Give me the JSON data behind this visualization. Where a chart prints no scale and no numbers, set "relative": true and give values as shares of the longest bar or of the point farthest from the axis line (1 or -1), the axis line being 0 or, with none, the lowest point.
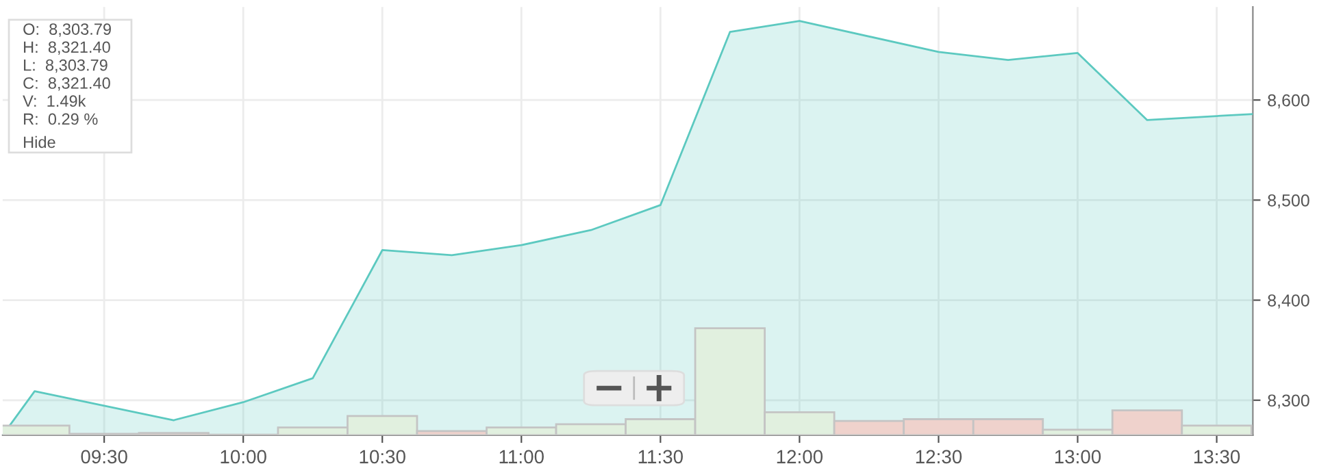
{
  "chart_data": [
    {
      "type": "area",
      "x": [
        9.135,
        9.25,
        9.75,
        10.0,
        10.25,
        10.5,
        10.75,
        11.0,
        11.25,
        11.5,
        11.75,
        12.0,
        12.5,
        12.75,
        13.0,
        13.25,
        13.5,
        13.63
      ],
      "series": [
        {
          "color": "#5cc9c0",
          "values": [
            8265,
            8309,
            8280,
            8298,
            8322,
            8450,
            8445,
            8455,
            8470,
            8495,
            8668,
            8679,
            8648,
            8640,
            8647,
            8580,
            8584,
            8586
          ]
        }
      ],
      "xlim": [
        9.135,
        13.63
      ],
      "xticks": [
        {
          "value": 9.5,
          "label": "09:30"
        },
        {
          "value": 10.0,
          "label": "10:00"
        },
        {
          "value": 10.5,
          "label": "10:30"
        },
        {
          "value": 11.0,
          "label": "11:00"
        },
        {
          "value": 11.5,
          "label": "11:30"
        },
        {
          "value": 12.0,
          "label": "12:00"
        },
        {
          "value": 12.5,
          "label": "12:30"
        },
        {
          "value": 13.0,
          "label": "13:00"
        },
        {
          "value": 13.5,
          "label": "13:30"
        }
      ],
      "ylim": [
        8265,
        8693
      ],
      "yticks": [
        {
          "value": 8300,
          "label": "8,300"
        },
        {
          "value": 8400,
          "label": "8,400"
        },
        {
          "value": 8500,
          "label": "8,500"
        },
        {
          "value": 8600,
          "label": "8,600"
        }
      ],
      "grid": true,
      "annotations": [
        "O:  8,303.79",
        "H:  8,321.40",
        "L:  8,303.79",
        "C:  8,321.40",
        "V:  1.49k",
        "R:  0.29 %",
        "Hide"
      ]
    },
    {
      "type": "bar",
      "relative": true,
      "x": [
        9.25,
        9.5,
        9.75,
        10.0,
        10.25,
        10.5,
        10.75,
        11.0,
        11.25,
        11.5,
        11.75,
        12.0,
        12.25,
        12.5,
        12.75,
        13.0,
        13.25,
        13.5
      ],
      "values": [
        0.09,
        0.013,
        0.022,
        0.006,
        0.073,
        0.18,
        0.039,
        0.073,
        0.103,
        0.15,
        1,
        0.215,
        0.133,
        0.15,
        0.15,
        0.051,
        0.232,
        0.09
      ],
      "colors": [
        "#e1f0df",
        "#efd2cc",
        "#efd2cc",
        "#e1f0df",
        "#e1f0df",
        "#e1f0df",
        "#efd2cc",
        "#e1f0df",
        "#e1f0df",
        "#e1f0df",
        "#e1f0df",
        "#e1f0df",
        "#efd2cc",
        "#efd2cc",
        "#efd2cc",
        "#e1f0df",
        "#efd2cc",
        "#e1f0df"
      ],
      "xlim": [
        9.135,
        13.63
      ]
    }
  ]
}
